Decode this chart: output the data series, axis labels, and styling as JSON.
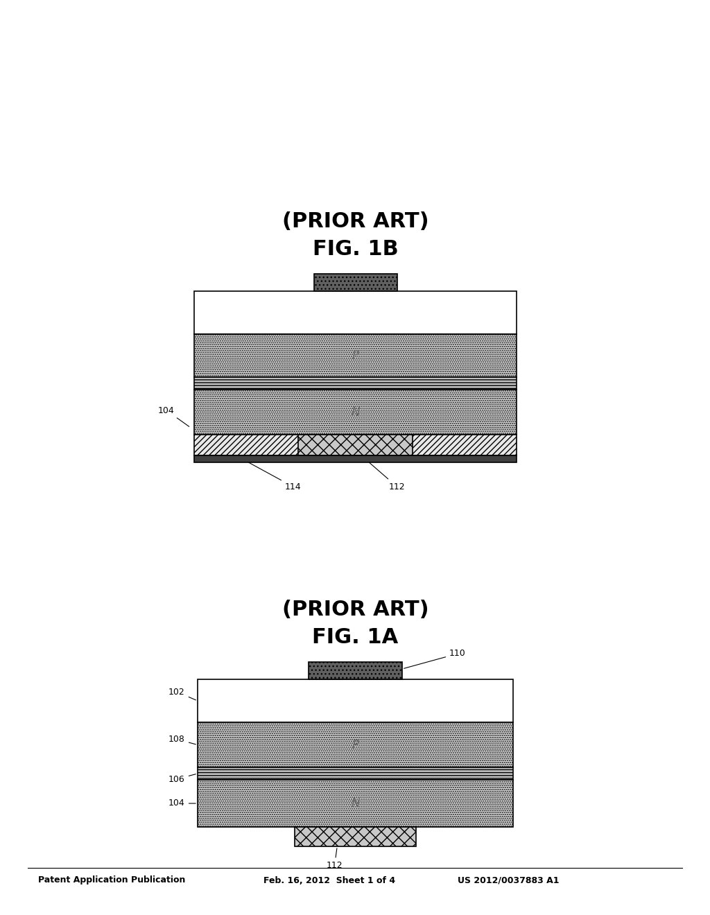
{
  "bg_color": "#ffffff",
  "header_left": "Patent Application Publication",
  "header_mid": "Feb. 16, 2012  Sheet 1 of 4",
  "header_right": "US 2012/0037883 A1",
  "fig1a_title": "FIG. 1A",
  "fig1a_subtitle": "(PRIOR ART)",
  "fig1b_title": "FIG. 1B",
  "fig1b_subtitle": "(PRIOR ART)",
  "colors": {
    "white": "#ffffff",
    "dotted_light": "#e8e8e8",
    "active_gray": "#b8b8b8",
    "crosshatch_contact": "#d0d0d0",
    "dark_contact": "#606060",
    "diagonal_layer": "#e0e0e0",
    "bg": "#ffffff",
    "black": "#000000"
  }
}
